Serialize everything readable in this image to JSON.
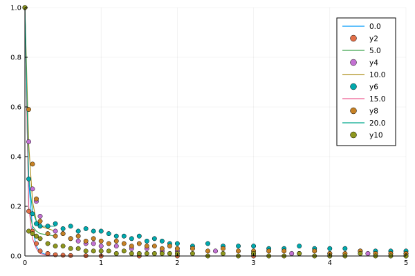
{
  "chart_data": {
    "type": "scatter",
    "xlim": [
      0,
      5
    ],
    "ylim": [
      0,
      1
    ],
    "x_ticks": [
      0,
      1,
      2,
      3,
      4,
      5
    ],
    "y_ticks": [
      0.0,
      0.2,
      0.4,
      0.6,
      0.8,
      1.0
    ],
    "x_tick_labels": [
      "0",
      "1",
      "2",
      "3",
      "4",
      "5"
    ],
    "y_tick_labels": [
      "0.0",
      "0.2",
      "0.4",
      "0.6",
      "0.8",
      "1.0"
    ],
    "grid": true,
    "legend_position": "top-right",
    "series": [
      {
        "name": "0.0",
        "kind": "line",
        "color": "#009AFA",
        "x": [
          0,
          0.05,
          0.1,
          0.15,
          0.2,
          0.3,
          0.4
        ],
        "y": [
          1.0,
          0.3,
          0.11,
          0.04,
          0.015,
          0.003,
          0.0
        ]
      },
      {
        "name": "y2",
        "kind": "scatter",
        "color": "#E36F47",
        "x": [
          0,
          0.05,
          0.1,
          0.15,
          0.2,
          0.3,
          0.4,
          0.5,
          0.6,
          0.8,
          1.0,
          1.5,
          2.0,
          3.0,
          4.0,
          5.0
        ],
        "y": [
          1.0,
          0.18,
          0.1,
          0.05,
          0.02,
          0.01,
          0.005,
          0.003,
          0.002,
          0.001,
          0.0,
          0.0,
          0.0,
          0.0,
          0.0,
          0.0
        ]
      },
      {
        "name": "5.0",
        "kind": "line",
        "color": "#3EA44E",
        "x": [
          0,
          0.05,
          0.1,
          0.15,
          0.2,
          0.3,
          0.4
        ],
        "y": [
          1.0,
          0.19,
          0.12,
          0.1,
          0.09,
          0.085,
          0.08
        ]
      },
      {
        "name": "y4",
        "kind": "scatter",
        "color": "#C371D2",
        "x": [
          0,
          0.05,
          0.1,
          0.15,
          0.2,
          0.3,
          0.4,
          0.5,
          0.6,
          0.7,
          0.8,
          0.9,
          1.0,
          1.2,
          1.4,
          1.6,
          1.8,
          2.0,
          2.5,
          3.0,
          3.5,
          4.0,
          4.5,
          5.0
        ],
        "y": [
          1.0,
          0.46,
          0.27,
          0.22,
          0.16,
          0.12,
          0.1,
          0.09,
          0.07,
          0.06,
          0.05,
          0.05,
          0.04,
          0.04,
          0.03,
          0.03,
          0.02,
          0.02,
          0.02,
          0.01,
          0.01,
          0.01,
          0.01,
          0.01
        ]
      },
      {
        "name": "10.0",
        "kind": "line",
        "color": "#AC8D18",
        "x": [
          0,
          0.05,
          0.1,
          0.15,
          0.2,
          0.3,
          0.4
        ],
        "y": [
          1.0,
          0.45,
          0.22,
          0.14,
          0.12,
          0.11,
          0.1
        ]
      },
      {
        "name": "y6",
        "kind": "scatter",
        "color": "#00A9AD",
        "x": [
          0,
          0.05,
          0.1,
          0.15,
          0.2,
          0.3,
          0.4,
          0.5,
          0.6,
          0.7,
          0.8,
          0.9,
          1.0,
          1.1,
          1.2,
          1.3,
          1.4,
          1.5,
          1.6,
          1.7,
          1.8,
          1.9,
          2.0,
          2.2,
          2.4,
          2.6,
          2.8,
          3.0,
          3.2,
          3.4,
          3.6,
          3.8,
          4.0,
          4.2,
          4.4,
          4.6,
          4.8,
          5.0
        ],
        "y": [
          1.0,
          0.31,
          0.17,
          0.13,
          0.12,
          0.12,
          0.13,
          0.11,
          0.12,
          0.1,
          0.11,
          0.1,
          0.1,
          0.09,
          0.08,
          0.08,
          0.07,
          0.08,
          0.06,
          0.07,
          0.06,
          0.05,
          0.05,
          0.04,
          0.05,
          0.04,
          0.04,
          0.04,
          0.03,
          0.03,
          0.04,
          0.03,
          0.03,
          0.03,
          0.02,
          0.02,
          0.02,
          0.02
        ]
      },
      {
        "name": "15.0",
        "kind": "line",
        "color": "#ED5D92",
        "x": [
          0,
          0.05,
          0.1,
          0.15,
          0.2,
          0.3,
          0.4
        ],
        "y": [
          1.0,
          0.2,
          0.07,
          0.03,
          0.01,
          0.002,
          0.0
        ]
      },
      {
        "name": "y8",
        "kind": "scatter",
        "color": "#C68125",
        "x": [
          0,
          0.05,
          0.1,
          0.15,
          0.2,
          0.3,
          0.4,
          0.5,
          0.6,
          0.7,
          0.8,
          0.9,
          1.0,
          1.1,
          1.2,
          1.3,
          1.4,
          1.5,
          1.6,
          1.7,
          1.8,
          1.9,
          2.0,
          2.2,
          2.4,
          2.6,
          2.8,
          3.0,
          3.2,
          3.4,
          3.6,
          3.8,
          4.0,
          4.2,
          4.4,
          4.6,
          4.8,
          5.0
        ],
        "y": [
          1.0,
          0.59,
          0.37,
          0.23,
          0.14,
          0.09,
          0.08,
          0.09,
          0.07,
          0.08,
          0.06,
          0.07,
          0.06,
          0.05,
          0.06,
          0.05,
          0.04,
          0.05,
          0.04,
          0.04,
          0.03,
          0.04,
          0.03,
          0.03,
          0.02,
          0.03,
          0.02,
          0.02,
          0.02,
          0.02,
          0.01,
          0.02,
          0.01,
          0.01,
          0.02,
          0.01,
          0.01,
          0.01
        ]
      },
      {
        "name": "20.0",
        "kind": "line",
        "color": "#00A98D",
        "x": [
          0,
          0.05,
          0.1,
          0.15,
          0.2,
          0.3,
          0.4
        ],
        "y": [
          1.0,
          0.32,
          0.18,
          0.14,
          0.12,
          0.12,
          0.12
        ]
      },
      {
        "name": "y10",
        "kind": "scatter",
        "color": "#8E971E",
        "x": [
          0,
          0.05,
          0.1,
          0.15,
          0.2,
          0.3,
          0.4,
          0.5,
          0.6,
          0.7,
          0.8,
          0.9,
          1.0,
          1.1,
          1.2,
          1.3,
          1.4,
          1.5,
          1.6,
          1.7,
          1.8,
          1.9,
          2.0,
          2.2,
          2.4,
          2.6,
          2.8,
          3.0,
          3.2,
          3.4,
          3.6,
          3.8,
          4.0,
          4.2,
          4.4,
          4.6,
          4.8,
          5.0
        ],
        "y": [
          1.0,
          0.1,
          0.09,
          0.08,
          0.07,
          0.05,
          0.04,
          0.04,
          0.03,
          0.03,
          0.02,
          0.02,
          0.02,
          0.02,
          0.01,
          0.02,
          0.01,
          0.01,
          0.01,
          0.01,
          0.01,
          0.01,
          0.01,
          0.01,
          0.0,
          0.01,
          0.0,
          0.01,
          0.0,
          0.0,
          0.01,
          0.0,
          0.0,
          0.0,
          0.01,
          0.0,
          0.0,
          0.0
        ]
      }
    ]
  }
}
